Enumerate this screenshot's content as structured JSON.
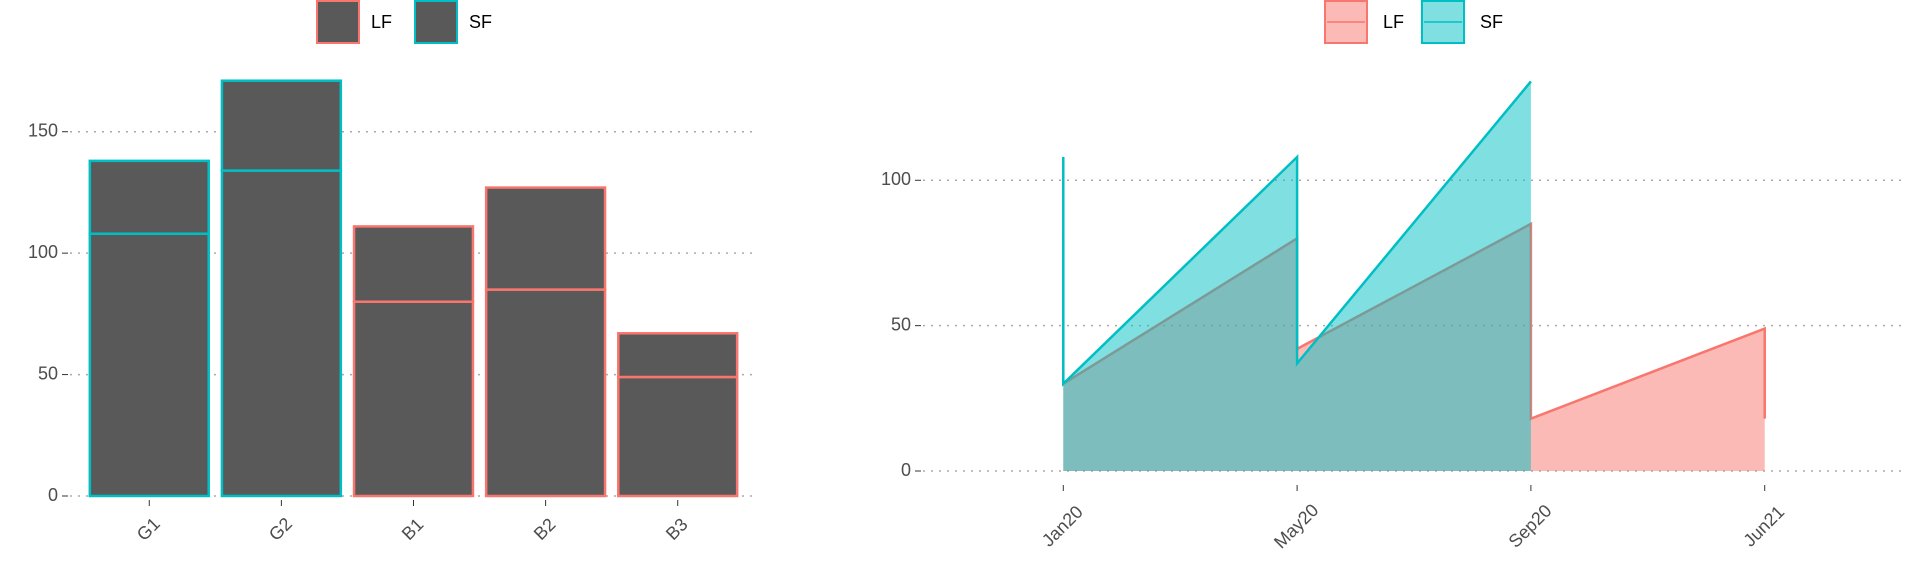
{
  "chart_data": [
    {
      "type": "bar",
      "categories": [
        "G1",
        "G2",
        "B1",
        "B2",
        "B3"
      ],
      "values_lower": [
        108,
        134,
        80,
        85,
        49
      ],
      "values_upper": [
        30,
        37,
        31,
        42,
        18
      ],
      "groups": [
        "SF",
        "SF",
        "LF",
        "LF",
        "LF"
      ],
      "fill": "#595959",
      "legend": [
        {
          "name": "LF",
          "color": "#f8766d"
        },
        {
          "name": "SF",
          "color": "#00bfc4"
        }
      ],
      "ylim": [
        0,
        175
      ],
      "yticks": [
        0,
        50,
        100,
        150
      ],
      "grid": true
    },
    {
      "type": "area",
      "categories": [
        "Jan20",
        "May20",
        "Sep20",
        "Jun21"
      ],
      "series": [
        {
          "name": "LF",
          "color": "#f8766d",
          "x": [
            "Jan20",
            "Jan20",
            "May20",
            "May20",
            "Sep20",
            "Sep20",
            "Jun21",
            "Jun21"
          ],
          "values": [
            80,
            30,
            80,
            42,
            85,
            18,
            49,
            18
          ]
        },
        {
          "name": "SF",
          "color": "#00bfc4",
          "x": [
            "Jan20",
            "Jan20",
            "May20",
            "May20",
            "Sep20"
          ],
          "values": [
            108,
            30,
            108,
            37,
            134
          ]
        }
      ],
      "ylim": [
        0,
        140
      ],
      "yticks": [
        0,
        50,
        100
      ],
      "grid": true
    }
  ]
}
